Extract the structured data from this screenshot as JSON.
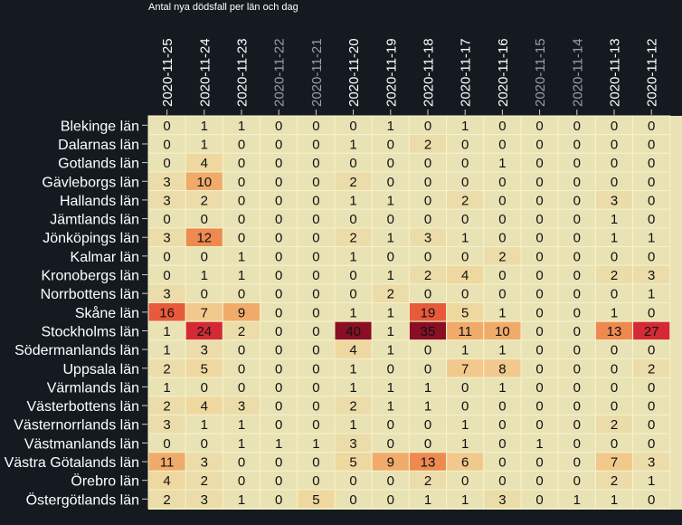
{
  "chart_data": {
    "type": "heatmap",
    "title": "Antal nya dödsfall per län och dag",
    "columns": [
      "2020-11-25",
      "2020-11-24",
      "2020-11-23",
      "2020-11-22",
      "2020-11-21",
      "2020-11-20",
      "2020-11-19",
      "2020-11-18",
      "2020-11-17",
      "2020-11-16",
      "2020-11-15",
      "2020-11-14",
      "2020-11-13",
      "2020-11-12"
    ],
    "dimmed_columns": [
      "2020-11-22",
      "2020-11-21",
      "2020-11-15",
      "2020-11-14"
    ],
    "rows": [
      "Blekinge län",
      "Dalarnas län",
      "Gotlands län",
      "Gävleborgs län",
      "Hallands län",
      "Jämtlands län",
      "Jönköpings län",
      "Kalmar län",
      "Kronobergs län",
      "Norrbottens län",
      "Skåne län",
      "Stockholms län",
      "Södermanlands län",
      "Uppsala län",
      "Värmlands län",
      "Västerbottens län",
      "Västernorrlands län",
      "Västmanlands län",
      "Västra Götalands län",
      "Örebro län",
      "Östergötlands län"
    ],
    "values": [
      [
        0,
        1,
        1,
        0,
        0,
        0,
        1,
        0,
        1,
        0,
        0,
        0,
        0,
        0
      ],
      [
        0,
        1,
        0,
        0,
        0,
        1,
        0,
        2,
        0,
        0,
        0,
        0,
        0,
        0
      ],
      [
        0,
        4,
        0,
        0,
        0,
        0,
        0,
        0,
        0,
        1,
        0,
        0,
        0,
        0
      ],
      [
        3,
        10,
        0,
        0,
        0,
        2,
        0,
        0,
        0,
        0,
        0,
        0,
        0,
        0
      ],
      [
        3,
        2,
        0,
        0,
        0,
        1,
        1,
        0,
        2,
        0,
        0,
        0,
        3,
        0
      ],
      [
        0,
        0,
        0,
        0,
        0,
        0,
        0,
        0,
        0,
        0,
        0,
        0,
        1,
        0
      ],
      [
        3,
        12,
        0,
        0,
        0,
        2,
        1,
        3,
        1,
        0,
        0,
        0,
        1,
        1
      ],
      [
        0,
        0,
        1,
        0,
        0,
        1,
        0,
        0,
        0,
        2,
        0,
        0,
        0,
        0
      ],
      [
        0,
        1,
        1,
        0,
        0,
        0,
        1,
        2,
        4,
        0,
        0,
        0,
        2,
        3
      ],
      [
        3,
        0,
        0,
        0,
        0,
        0,
        2,
        0,
        0,
        0,
        0,
        0,
        0,
        1
      ],
      [
        16,
        7,
        9,
        0,
        0,
        1,
        1,
        19,
        5,
        1,
        0,
        0,
        1,
        0
      ],
      [
        1,
        24,
        2,
        0,
        0,
        40,
        1,
        35,
        11,
        10,
        0,
        0,
        13,
        27
      ],
      [
        1,
        3,
        0,
        0,
        0,
        4,
        1,
        0,
        1,
        1,
        0,
        0,
        0,
        0
      ],
      [
        2,
        5,
        0,
        0,
        0,
        1,
        0,
        0,
        7,
        8,
        0,
        0,
        0,
        2
      ],
      [
        1,
        0,
        0,
        0,
        0,
        1,
        1,
        1,
        0,
        1,
        0,
        0,
        0,
        0
      ],
      [
        2,
        4,
        3,
        0,
        0,
        2,
        1,
        1,
        0,
        0,
        0,
        0,
        0,
        0
      ],
      [
        3,
        1,
        1,
        0,
        0,
        1,
        0,
        0,
        1,
        0,
        0,
        0,
        2,
        0
      ],
      [
        0,
        0,
        1,
        1,
        1,
        3,
        0,
        0,
        1,
        0,
        1,
        0,
        0,
        0
      ],
      [
        11,
        3,
        0,
        0,
        0,
        5,
        9,
        13,
        6,
        0,
        0,
        0,
        7,
        3
      ],
      [
        4,
        2,
        0,
        0,
        0,
        0,
        0,
        2,
        0,
        0,
        0,
        0,
        2,
        1
      ],
      [
        2,
        3,
        1,
        0,
        5,
        0,
        0,
        1,
        1,
        3,
        0,
        1,
        1,
        0
      ]
    ],
    "color_scale": [
      "#e9e2b4",
      "#efd7a0",
      "#f2c98c",
      "#f0ab6a",
      "#ee8a50",
      "#e85a3c",
      "#d42a35",
      "#8a0f25"
    ],
    "value_range": [
      0,
      40
    ]
  }
}
